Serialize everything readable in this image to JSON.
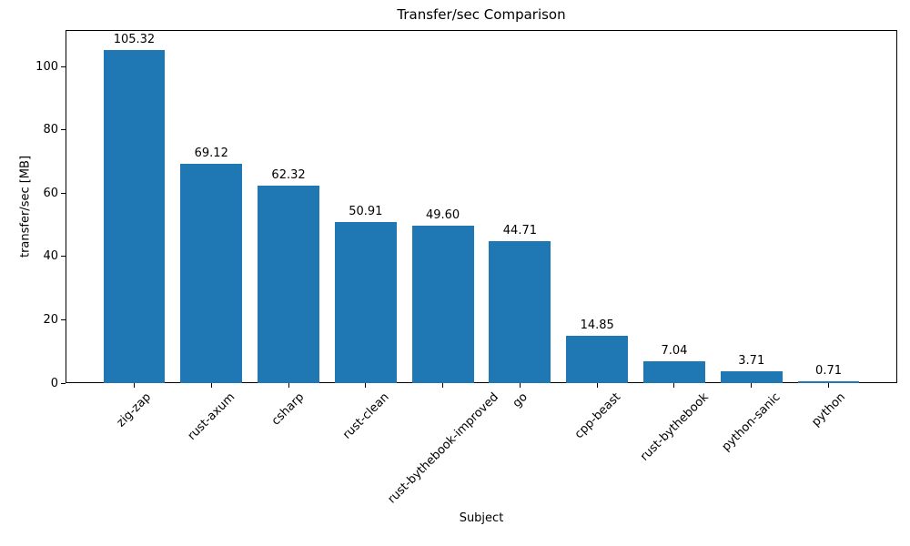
{
  "figure": {
    "title": "Transfer/sec Comparison",
    "xlabel": "Subject",
    "ylabel": "transfer/sec [MB]"
  },
  "chart_data": {
    "type": "bar",
    "title": "Transfer/sec Comparison",
    "xlabel": "Subject",
    "ylabel": "transfer/sec [MB]",
    "categories": [
      "zig-zap",
      "rust-axum",
      "csharp",
      "rust-clean",
      "rust-bythebook-improved",
      "go",
      "cpp-beast",
      "rust-bythebook",
      "python-sanic",
      "python"
    ],
    "values": [
      105.32,
      69.12,
      62.32,
      50.91,
      49.6,
      44.71,
      14.85,
      7.04,
      3.71,
      0.71
    ],
    "bar_labels": [
      "105.32",
      "69.12",
      "62.32",
      "50.91",
      "49.60",
      "44.71",
      "14.85",
      "7.04",
      "3.71",
      "0.71"
    ],
    "yticks": [
      0,
      20,
      40,
      60,
      80,
      100
    ],
    "ylim": [
      0,
      111.5
    ],
    "bar_color": "#1f77b4",
    "grid": false,
    "legend_position": "none",
    "tick_label_rotation": 45
  }
}
